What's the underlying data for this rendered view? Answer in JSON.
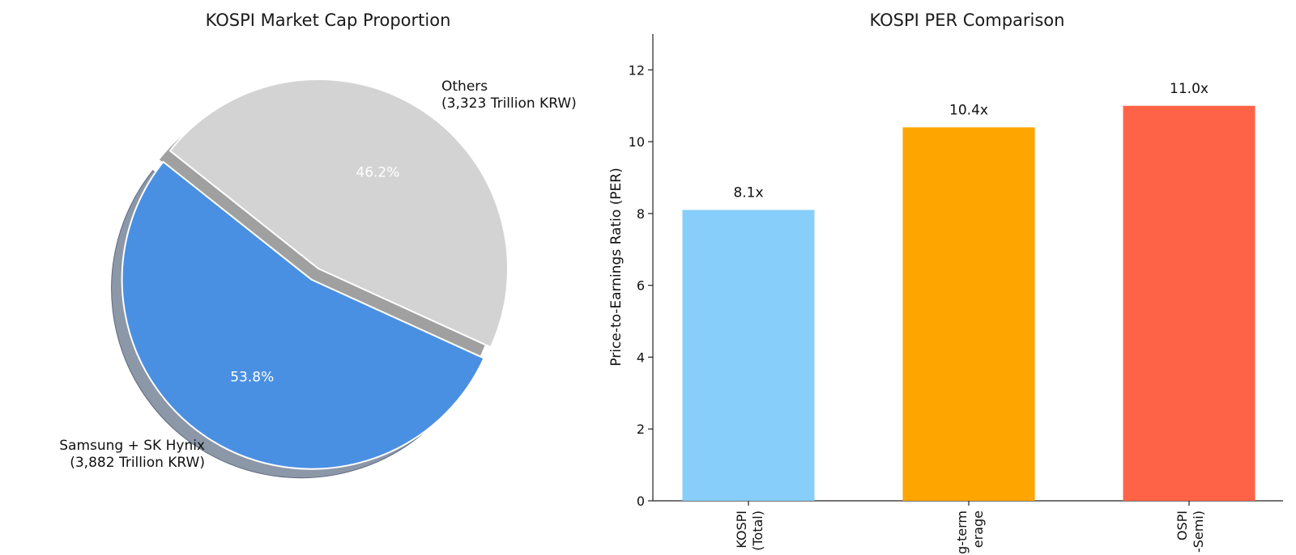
{
  "chart_data": [
    {
      "type": "pie",
      "title": "KOSPI Market Cap Proportion",
      "slices": [
        {
          "label_line1": "Samsung + SK Hynix",
          "label_line2": "(3,882 Trillion KRW)",
          "value": 3882,
          "percent_label": "53.8%",
          "color": "#4A90E2",
          "exploded": true
        },
        {
          "label_line1": "Others",
          "label_line2": "(3,323 Trillion KRW)",
          "value": 3323,
          "percent_label": "46.2%",
          "color": "#D3D3D3",
          "exploded": false
        }
      ],
      "shadow": true
    },
    {
      "type": "bar",
      "title": "KOSPI PER Comparison",
      "ylabel": "Price-to-Earnings Ratio (PER)",
      "ylim": [
        0,
        13
      ],
      "yticks": [
        "0",
        "2",
        "4",
        "6",
        "8",
        "10",
        "12"
      ],
      "categories": [
        {
          "line1": "KOSPI",
          "line2": "(Total)"
        },
        {
          "line1": "g-term",
          "line2": "erage"
        },
        {
          "line1": "OSPI",
          "line2": "-Semi)"
        }
      ],
      "values": [
        8.1,
        10.4,
        11.0
      ],
      "value_labels": [
        "8.1x",
        "10.4x",
        "11.0x"
      ],
      "colors": [
        "#87CEFA",
        "#FFA500",
        "#FF6347"
      ]
    }
  ]
}
